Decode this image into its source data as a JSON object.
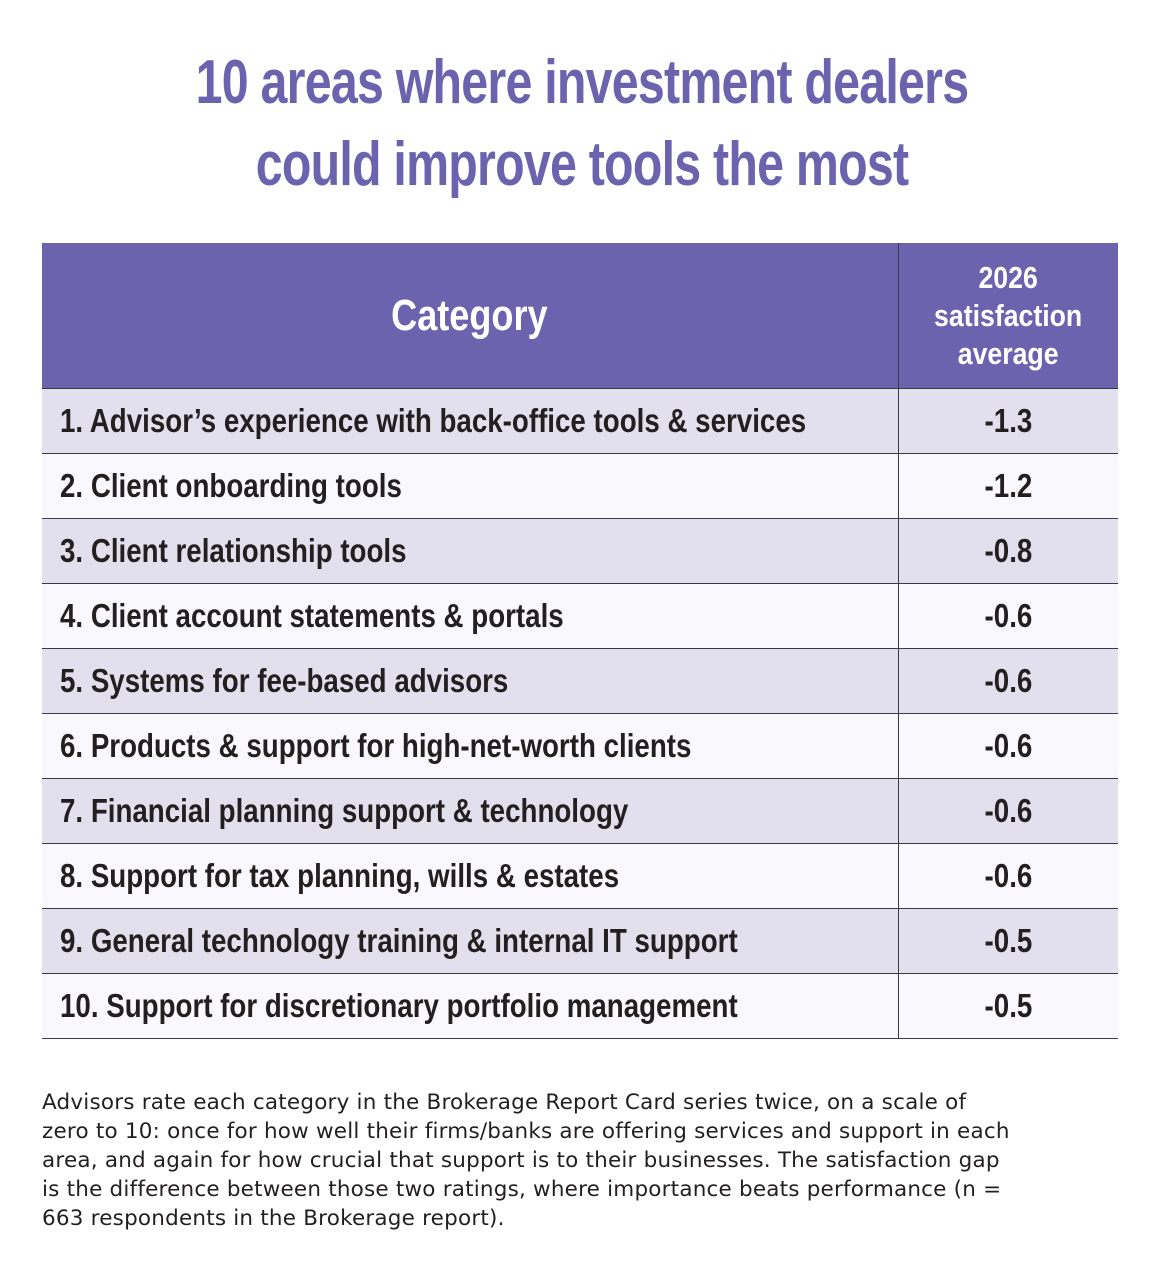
{
  "title": {
    "line1": "10 areas where investment dealers",
    "line2": "could improve tools the most"
  },
  "table": {
    "header_category": "Category",
    "header_value_lines": [
      "2026",
      "satisfaction",
      "average"
    ]
  },
  "chart_data": {
    "type": "table",
    "title": "10 areas where investment dealers could improve tools the most",
    "columns": [
      "Category",
      "2026 satisfaction average"
    ],
    "rows": [
      {
        "category": "1. Advisor’s experience with back-office tools & services",
        "value": "-1.3"
      },
      {
        "category": "2. Client onboarding tools",
        "value": "-1.2"
      },
      {
        "category": "3. Client relationship tools",
        "value": "-0.8"
      },
      {
        "category": "4. Client account statements & portals",
        "value": "-0.6"
      },
      {
        "category": "5. Systems for fee-based advisors",
        "value": "-0.6"
      },
      {
        "category": "6. Products & support for high-net-worth clients",
        "value": "-0.6"
      },
      {
        "category": "7. Financial planning support & technology",
        "value": "-0.6"
      },
      {
        "category": "8. Support for tax planning, wills & estates",
        "value": "-0.6"
      },
      {
        "category": "9. General technology training & internal IT support",
        "value": "-0.5"
      },
      {
        "category": "10. Support for discretionary portfolio management",
        "value": "-0.5"
      }
    ]
  },
  "footnote_lines": [
    "Advisors rate each category in the Brokerage Report Card series twice, on a scale of",
    "zero to 10: once for how well their firms/banks are offering services and support in each",
    "area, and again for how crucial that support is to their businesses. The satisfaction gap",
    "is the difference between those two ratings, where importance beats performance (n =",
    "663 respondents in the Brokerage report)."
  ],
  "colors": {
    "accent": "#6b63ad",
    "row_shade": "#e3e0ee",
    "row_light": "#f9f8fc",
    "text": "#231f20"
  }
}
